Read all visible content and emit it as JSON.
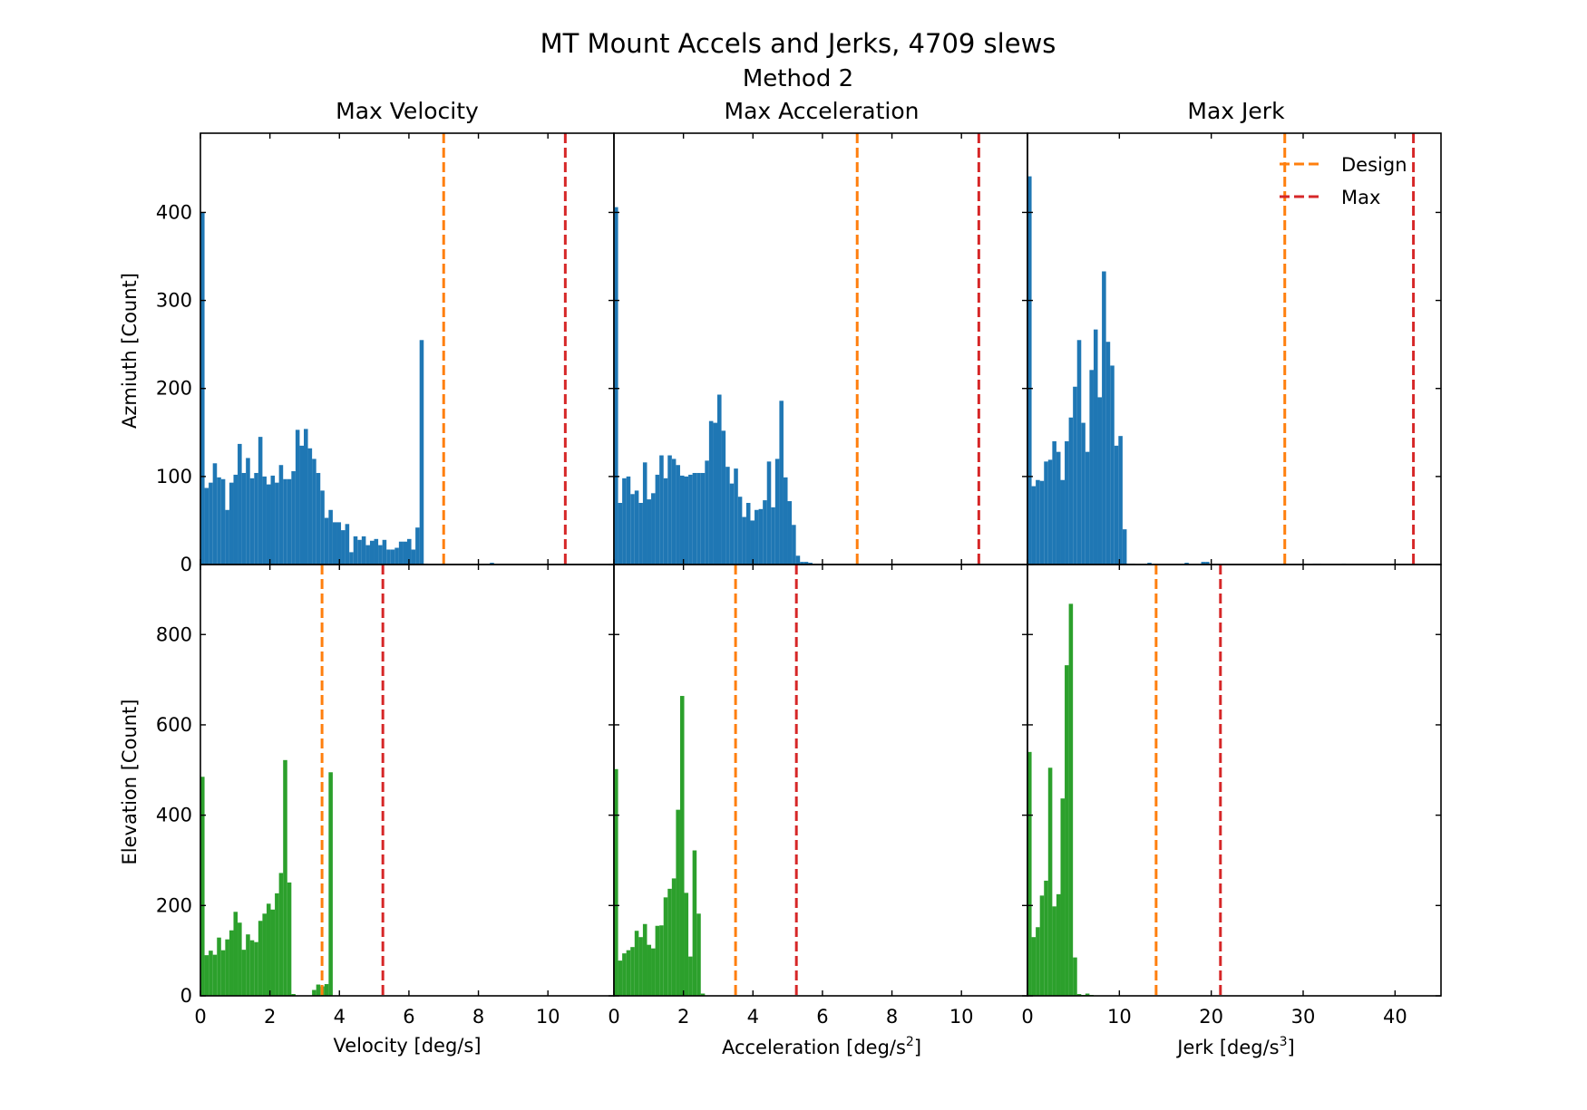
{
  "chart_data": {
    "type": "bar",
    "suptitle": "MT Mount Accels and Jerks, 4709 slews",
    "suptitle_line2": "Method 2",
    "column_titles": [
      "Max Velocity",
      "Max Acceleration",
      "Max Jerk"
    ],
    "xlabels": [
      {
        "text": "Velocity [deg/s]",
        "sup": ""
      },
      {
        "text": "Acceleration [deg/s",
        "sup": "2",
        "close": "]"
      },
      {
        "text": "Jerk [deg/s",
        "sup": "3",
        "close": "]"
      }
    ],
    "ylabels": [
      "Azmiuth [Count]",
      "Elevation [Count]"
    ],
    "xlims": [
      [
        0,
        11.9
      ],
      [
        0,
        11.9
      ],
      [
        0,
        45
      ]
    ],
    "xticks": [
      [
        0,
        2,
        4,
        6,
        8,
        10
      ],
      [
        0,
        2,
        4,
        6,
        8,
        10
      ],
      [
        0,
        10,
        20,
        30,
        40
      ]
    ],
    "ylims": [
      [
        0,
        490
      ],
      [
        0,
        955
      ]
    ],
    "yticks": [
      [
        0,
        100,
        200,
        300,
        400
      ],
      [
        0,
        200,
        400,
        600,
        800
      ]
    ],
    "colors": {
      "azimuth": "#1f77b4",
      "elevation": "#2ca02c",
      "design": "#ff7f0e",
      "max": "#d62728"
    },
    "legend": {
      "position": "top-right",
      "entries": [
        "Design",
        "Max"
      ]
    },
    "panels": [
      {
        "row": 0,
        "col": 0,
        "name": "Azimuth velocity",
        "color": "azimuth",
        "bin_width": 0.119,
        "design": 7.0,
        "max": 10.5,
        "values": [
          400,
          87,
          93,
          115,
          99,
          97,
          62,
          93,
          102,
          137,
          104,
          121,
          98,
          104,
          145,
          100,
          91,
          101,
          93,
          113,
          97,
          97,
          106,
          153,
          135,
          154,
          132,
          120,
          104,
          84,
          53,
          62,
          48,
          48,
          39,
          46,
          14,
          32,
          28,
          32,
          22,
          27,
          29,
          22,
          28,
          17,
          17,
          19,
          26,
          26,
          29,
          17,
          42,
          255,
          1,
          0,
          0,
          0,
          0,
          0,
          0,
          0,
          0,
          0,
          0,
          0,
          0,
          0,
          0,
          0,
          2,
          0,
          0,
          0,
          0,
          0,
          0,
          0,
          0,
          0,
          0,
          0,
          0,
          0,
          0,
          0,
          0,
          0,
          0,
          0,
          0,
          0,
          0,
          0,
          0,
          0,
          0,
          0,
          0,
          0
        ]
      },
      {
        "row": 0,
        "col": 1,
        "name": "Azimuth acceleration",
        "color": "azimuth",
        "bin_width": 0.119,
        "design": 7.0,
        "max": 10.5,
        "values": [
          406,
          70,
          98,
          100,
          80,
          84,
          70,
          116,
          74,
          81,
          102,
          124,
          98,
          124,
          120,
          113,
          101,
          100,
          102,
          104,
          104,
          104,
          118,
          163,
          161,
          193,
          152,
          111,
          92,
          109,
          77,
          54,
          70,
          50,
          62,
          63,
          73,
          117,
          65,
          120,
          186,
          99,
          72,
          45,
          10,
          3,
          3,
          2,
          0,
          0,
          0,
          0,
          0,
          0,
          0,
          0,
          0,
          0,
          0,
          0,
          0,
          0,
          0,
          0,
          0,
          0,
          0,
          0,
          0,
          0,
          0,
          0,
          0,
          0,
          0,
          0,
          0,
          0,
          0,
          0,
          0,
          0,
          0,
          0,
          0,
          0,
          0,
          0,
          0,
          0,
          0,
          0,
          0,
          0,
          0,
          0,
          0,
          0,
          0,
          0
        ]
      },
      {
        "row": 0,
        "col": 2,
        "name": "Azimuth jerk",
        "color": "azimuth",
        "bin_width": 0.45,
        "design": 28.0,
        "max": 42.0,
        "values": [
          441,
          89,
          96,
          95,
          117,
          119,
          140,
          128,
          96,
          140,
          167,
          202,
          255,
          161,
          128,
          221,
          267,
          190,
          333,
          253,
          226,
          135,
          146,
          40,
          1,
          1,
          0,
          0,
          0,
          2,
          0,
          0,
          0,
          0,
          0,
          0,
          0,
          0,
          2,
          0,
          0,
          0,
          3,
          3,
          0,
          0,
          0,
          0,
          0,
          0,
          0,
          0,
          0,
          0,
          0,
          0,
          0,
          0,
          0,
          0,
          0,
          0,
          0,
          0,
          0,
          0,
          0,
          0,
          0,
          1,
          1,
          0,
          0,
          0,
          0,
          0,
          1,
          0,
          0,
          0,
          0,
          0,
          0,
          0,
          0,
          0,
          0,
          0,
          0,
          0,
          0,
          0,
          0,
          0,
          0,
          0,
          0,
          0,
          0,
          0
        ]
      },
      {
        "row": 1,
        "col": 0,
        "name": "Elevation velocity",
        "color": "elevation",
        "bin_width": 0.119,
        "design": 3.5,
        "max": 5.25,
        "values": [
          485,
          90,
          100,
          91,
          129,
          101,
          125,
          145,
          186,
          162,
          102,
          136,
          123,
          119,
          166,
          182,
          204,
          191,
          227,
          272,
          522,
          251,
          4,
          0,
          0,
          0,
          0,
          13,
          25,
          21,
          26,
          495,
          1,
          0,
          0,
          0,
          0,
          0,
          0,
          0,
          0,
          0,
          0,
          0,
          0,
          0,
          0,
          0,
          0,
          0,
          0,
          0,
          0,
          0,
          0,
          0,
          0,
          0,
          0,
          0,
          0,
          0,
          0,
          0,
          0,
          0,
          0,
          0,
          0,
          0,
          0,
          0,
          0,
          0,
          0,
          0,
          0,
          0,
          0,
          0,
          0,
          0,
          0,
          0,
          0,
          0,
          0,
          0,
          0,
          0,
          0,
          0,
          0,
          0,
          0,
          0,
          0,
          0,
          0,
          0
        ]
      },
      {
        "row": 1,
        "col": 1,
        "name": "Elevation acceleration",
        "color": "elevation",
        "bin_width": 0.119,
        "design": 3.5,
        "max": 5.25,
        "values": [
          502,
          78,
          94,
          101,
          108,
          144,
          130,
          159,
          113,
          105,
          155,
          156,
          218,
          237,
          260,
          412,
          664,
          228,
          87,
          322,
          182,
          5,
          0,
          0,
          0,
          0,
          0,
          0,
          0,
          0,
          0,
          0,
          0,
          0,
          0,
          0,
          0,
          0,
          0,
          0,
          0,
          0,
          0,
          0,
          0,
          0,
          0,
          0,
          0,
          0,
          0,
          0,
          0,
          0,
          0,
          0,
          0,
          0,
          0,
          0,
          0,
          0,
          0,
          0,
          0,
          0,
          0,
          0,
          0,
          0,
          0,
          0,
          0,
          0,
          0,
          0,
          0,
          0,
          0,
          0,
          0,
          0,
          0,
          0,
          0,
          0,
          0,
          0,
          0,
          0,
          0,
          0,
          0,
          0,
          0,
          0,
          0,
          0,
          0,
          0
        ]
      },
      {
        "row": 1,
        "col": 2,
        "name": "Elevation jerk",
        "color": "elevation",
        "bin_width": 0.45,
        "design": 14.0,
        "max": 21.0,
        "values": [
          540,
          130,
          152,
          222,
          255,
          505,
          198,
          225,
          437,
          732,
          868,
          85,
          4,
          2,
          5,
          2,
          0,
          0,
          0,
          0,
          0,
          0,
          0,
          0,
          0,
          0,
          0,
          0,
          0,
          0,
          0,
          0,
          0,
          0,
          0,
          0,
          0,
          0,
          0,
          0,
          0,
          0,
          0,
          0,
          0,
          0,
          0,
          0,
          0,
          0,
          0,
          0,
          0,
          0,
          0,
          0,
          0,
          0,
          0,
          0,
          0,
          0,
          0,
          0,
          0,
          0,
          0,
          0,
          0,
          0,
          0,
          0,
          0,
          0,
          0,
          0,
          0,
          0,
          0,
          0,
          0,
          0,
          0,
          0,
          0,
          0,
          0,
          0,
          0,
          0,
          0,
          0,
          0,
          0,
          0,
          0,
          0,
          0,
          0,
          0
        ]
      }
    ]
  }
}
